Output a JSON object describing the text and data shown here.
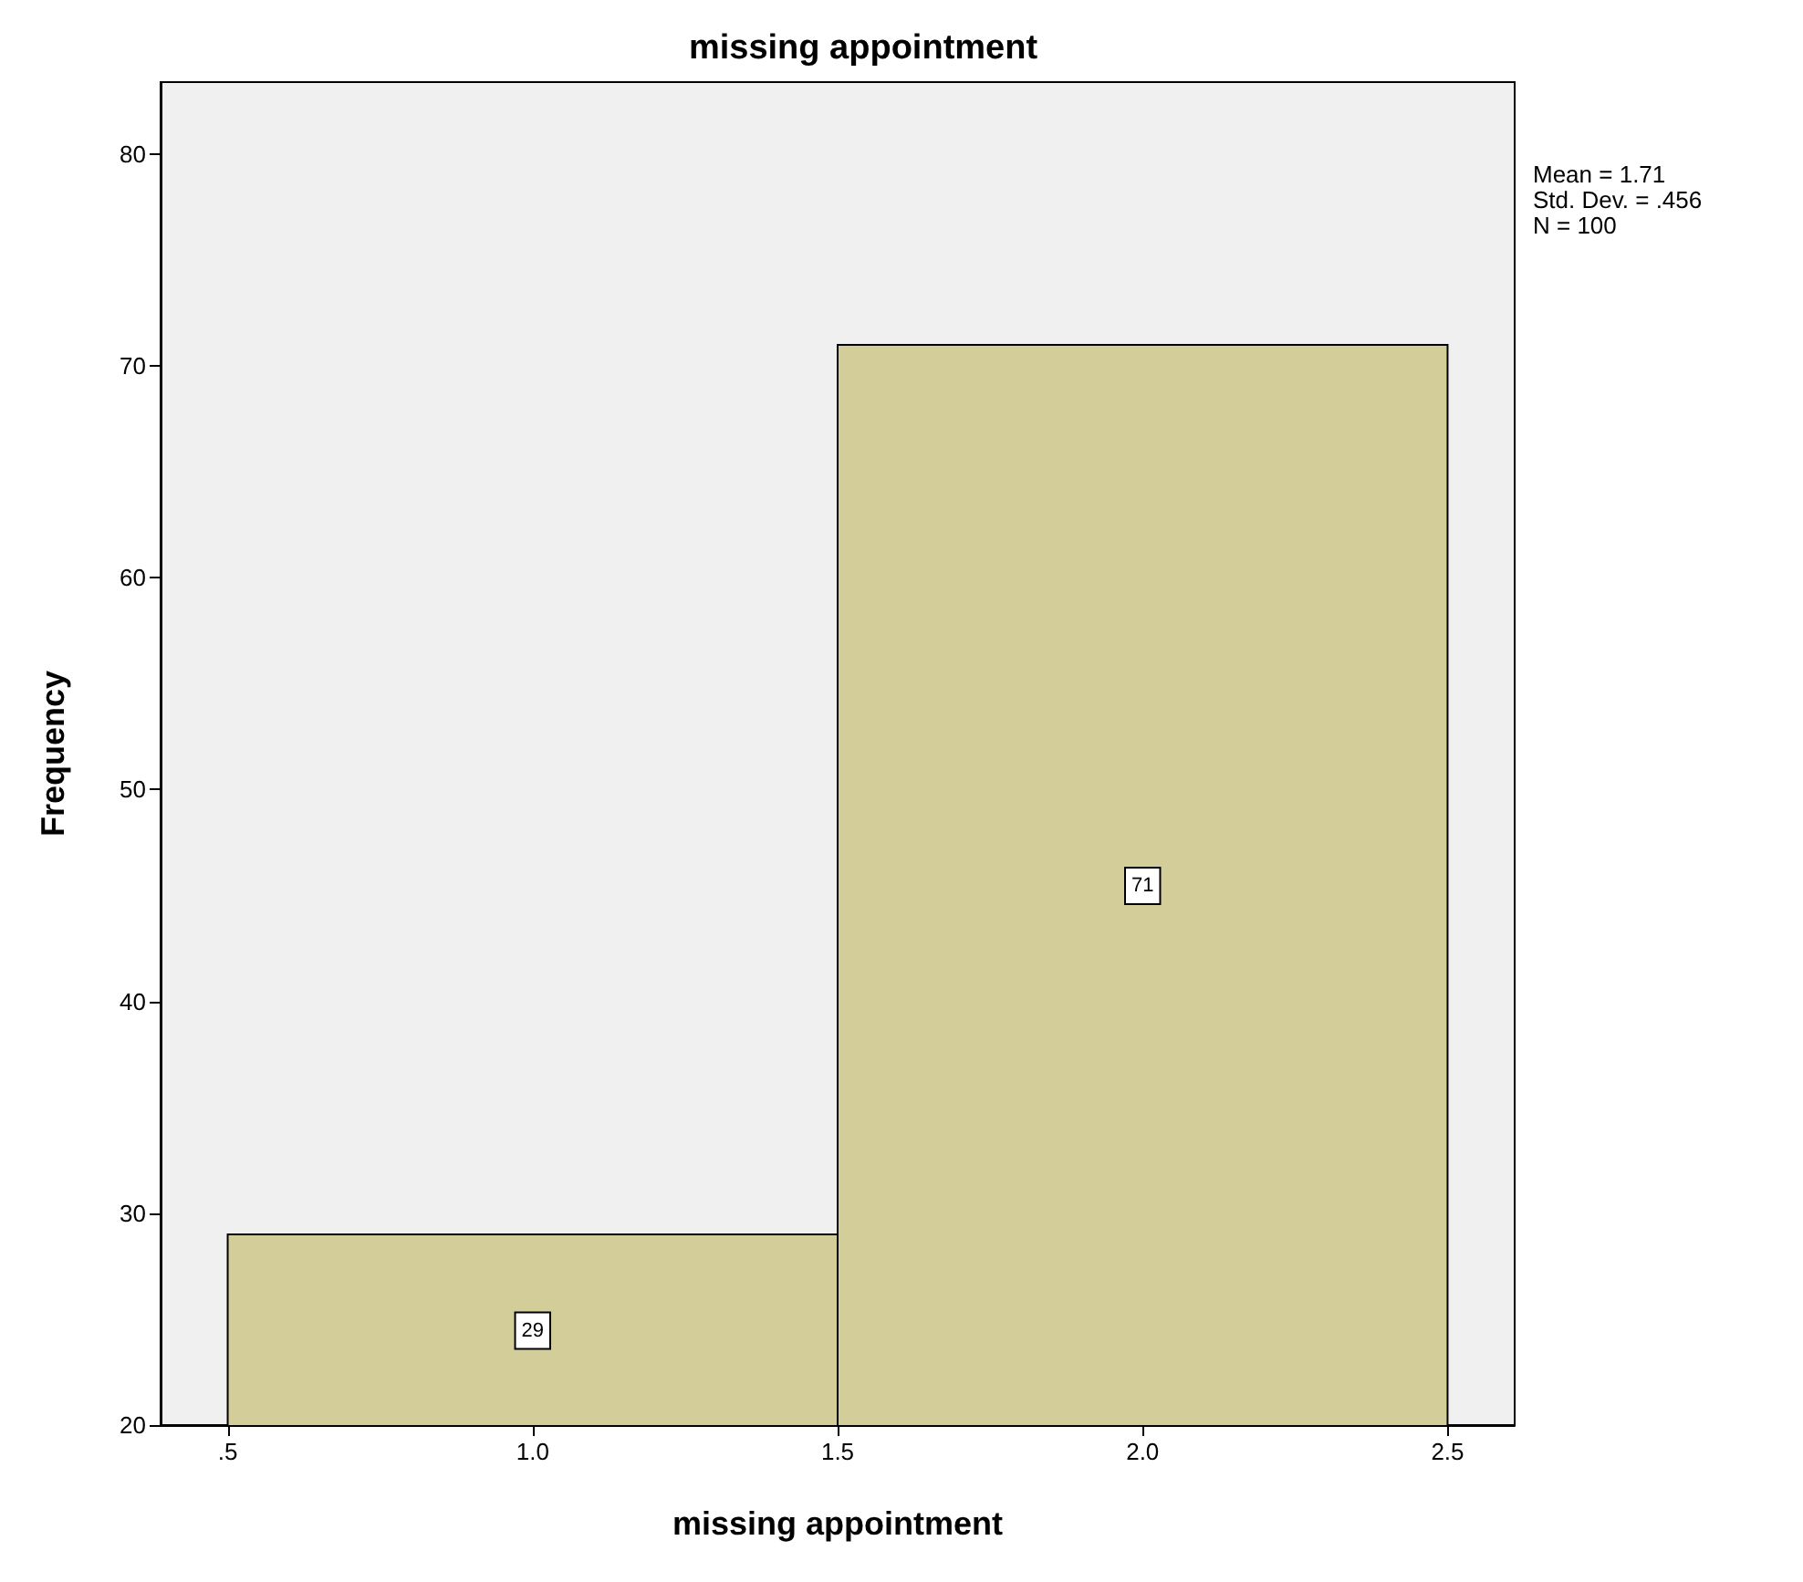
{
  "chart_data": {
    "type": "histogram",
    "title": "missing appointment",
    "xlabel": "missing appointment",
    "ylabel": "Frequency",
    "bins": [
      0.5,
      1.5,
      2.5
    ],
    "values": [
      29,
      71
    ],
    "color": "#d3ce99",
    "xlim": [
      0.39,
      2.61
    ],
    "xticks": [
      {
        "value": 0.5,
        "label": ".5"
      },
      {
        "value": 1,
        "label": "1.0"
      },
      {
        "value": 1.5,
        "label": "1.5"
      },
      {
        "value": 2,
        "label": "2.0"
      },
      {
        "value": 2.5,
        "label": "2.5"
      }
    ],
    "ylim": [
      20,
      83.4
    ],
    "yticks": [
      20,
      30,
      40,
      50,
      60,
      70,
      80
    ],
    "grid": false,
    "data_labels": true,
    "annotations": [
      "Mean = 1.71",
      "Std. Dev. = .456",
      "N = 100"
    ]
  }
}
